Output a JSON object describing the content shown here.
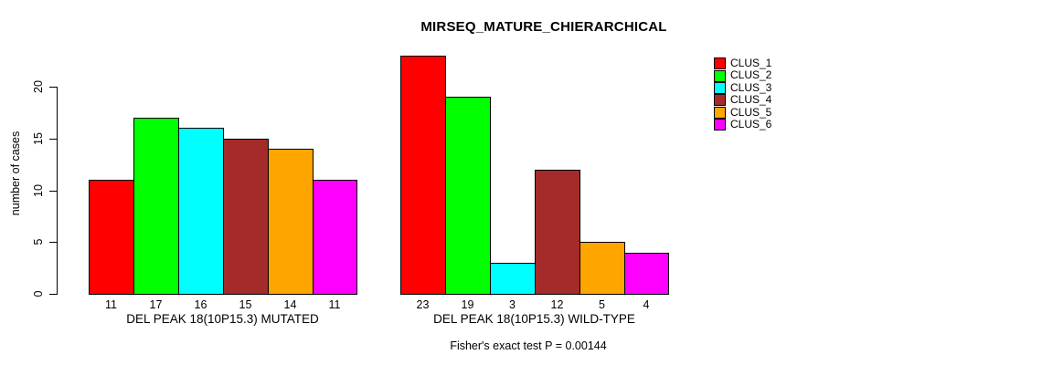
{
  "chart_data": {
    "type": "bar",
    "title": "MIRSEQ_MATURE_CHIERARCHICAL",
    "ylabel": "number of cases",
    "footnote": "Fisher's exact test P = 0.00144",
    "ylim": [
      0,
      20
    ],
    "yticks": [
      0,
      5,
      10,
      15,
      20
    ],
    "grid": false,
    "bar_colors": [
      "#FF0000",
      "#00FF00",
      "#00FFFF",
      "#A52A2A",
      "#FFA500",
      "#FF00FF"
    ],
    "groups": [
      {
        "label": "DEL PEAK 18(10P15.3) MUTATED",
        "values": [
          11,
          17,
          16,
          15,
          14,
          11
        ]
      },
      {
        "label": "DEL PEAK 18(10P15.3) WILD-TYPE",
        "values": [
          23,
          19,
          3,
          12,
          5,
          4
        ]
      }
    ],
    "legend": {
      "position": "right",
      "entries": [
        {
          "name": "CLUS_1",
          "color": "#FF0000"
        },
        {
          "name": "CLUS_2",
          "color": "#00FF00"
        },
        {
          "name": "CLUS_3",
          "color": "#00FFFF"
        },
        {
          "name": "CLUS_4",
          "color": "#A52A2A"
        },
        {
          "name": "CLUS_5",
          "color": "#FFA500"
        },
        {
          "name": "CLUS_6",
          "color": "#FF00FF"
        }
      ]
    }
  }
}
